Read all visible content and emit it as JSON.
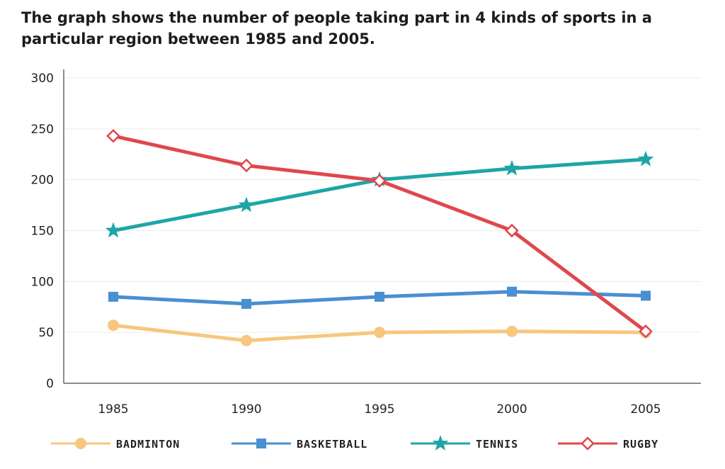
{
  "chart_data": {
    "type": "line",
    "title": "The graph shows the number of people taking part in 4 kinds of sports in a particular region between 1985 and 2005.",
    "xlabel": "",
    "ylabel": "",
    "categories": [
      "1985",
      "1990",
      "1995",
      "2000",
      "2005"
    ],
    "y_ticks": [
      "0",
      "50",
      "100",
      "150",
      "200",
      "250",
      "300"
    ],
    "ylim": [
      0,
      300
    ],
    "grid": "horizontal",
    "legend_position": "bottom",
    "series": [
      {
        "name": "BADMINTON",
        "color": "#f7c77e",
        "marker": "circle",
        "values": [
          57,
          42,
          50,
          51,
          50
        ]
      },
      {
        "name": "BASKETBALL",
        "color": "#4a8fd0",
        "marker": "square",
        "values": [
          85,
          78,
          85,
          90,
          86
        ]
      },
      {
        "name": "TENNIS",
        "color": "#1fa5a5",
        "marker": "star",
        "values": [
          150,
          175,
          200,
          211,
          220
        ]
      },
      {
        "name": "RUGBY",
        "color": "#e0474c",
        "marker": "diamond",
        "values": [
          243,
          214,
          199,
          150,
          51
        ]
      }
    ]
  }
}
